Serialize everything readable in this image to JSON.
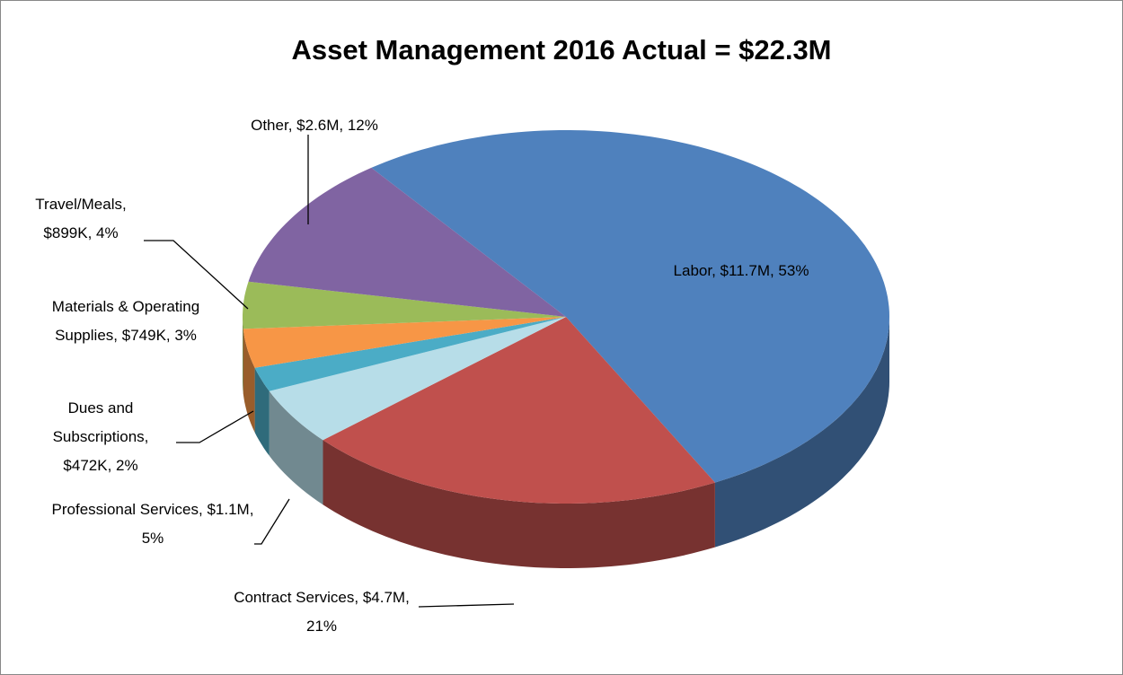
{
  "chart_data": {
    "type": "pie3d",
    "title": "Asset Management 2016 Actual = $22.3M",
    "categories": [
      "Labor",
      "Contract Services",
      "Professional Services",
      "Dues and Subscriptions",
      "Materials & Operating Supplies",
      "Travel/Meals",
      "Other"
    ],
    "values": [
      11700000,
      4700000,
      1100000,
      472000,
      749000,
      899000,
      2600000
    ],
    "value_labels": [
      "$11.7M, 53%",
      "$4.7M, 21%",
      "$1.1M, 5%",
      "$472K, 2%",
      "$749K, 3%",
      "$899K, 4%",
      "$2.6M, 12%"
    ],
    "colors": [
      "#4f81bd",
      "#c0504d",
      "#b7dde8",
      "#4bacc6",
      "#f79646",
      "#9bbb59",
      "#8064a2"
    ]
  }
}
